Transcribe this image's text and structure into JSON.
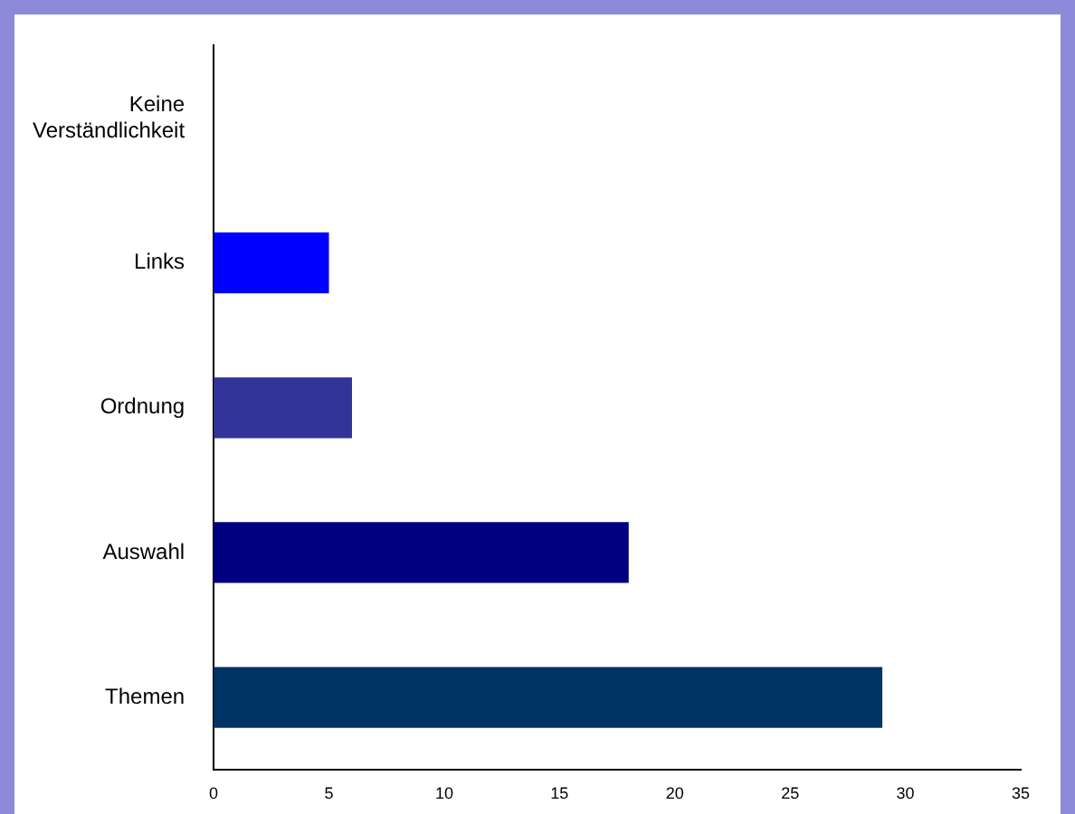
{
  "chart_data": {
    "type": "bar",
    "orientation": "horizontal",
    "categories": [
      "Keine Verständlichkeit",
      "Links",
      "Ordnung",
      "Auswahl",
      "Themen"
    ],
    "values": [
      0,
      5,
      6,
      18,
      29
    ],
    "colors": [
      "#000080",
      "#0000ff",
      "#333399",
      "#000080",
      "#003366"
    ],
    "xlim": [
      0,
      35
    ],
    "xticks": [
      0,
      5,
      10,
      15,
      20,
      25,
      30,
      35
    ],
    "grid": false,
    "legend": false
  }
}
